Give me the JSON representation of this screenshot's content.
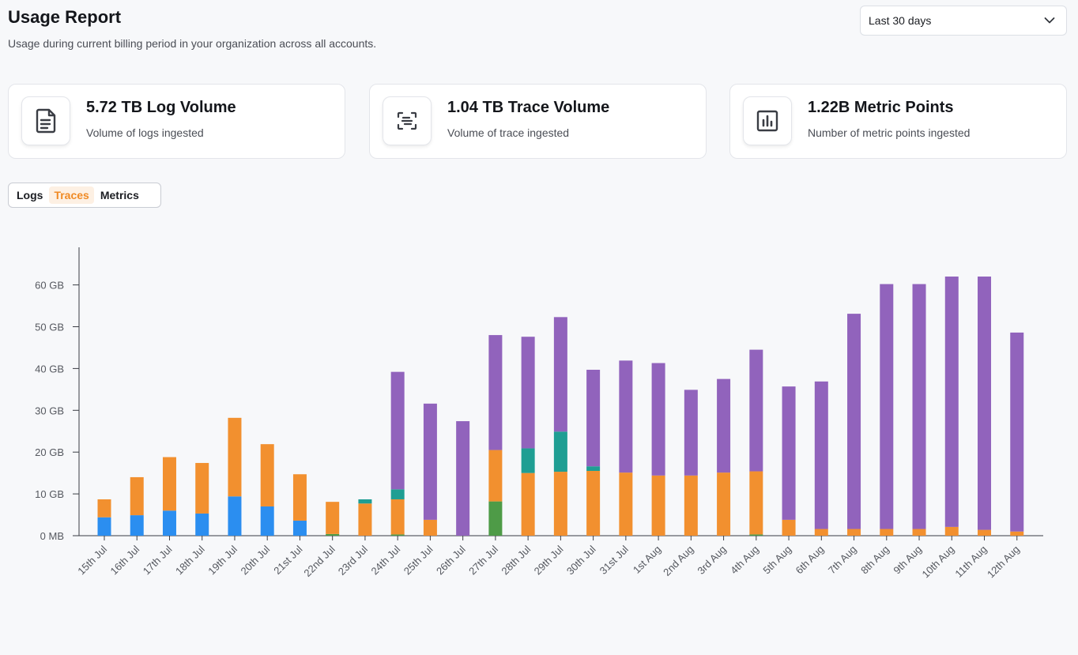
{
  "header": {
    "title": "Usage Report",
    "subtitle": "Usage during current billing period in your organization across all accounts."
  },
  "range_select": {
    "value": "Last 30 days",
    "icon": "chevron-down-icon"
  },
  "cards": [
    {
      "title": "5.72 TB Log Volume",
      "desc": "Volume of logs ingested",
      "icon": "document-icon"
    },
    {
      "title": "1.04 TB Trace Volume",
      "desc": "Volume of trace ingested",
      "icon": "trace-icon"
    },
    {
      "title": "1.22B Metric Points",
      "desc": "Number of metric points ingested",
      "icon": "bar-chart-icon"
    }
  ],
  "tabs": [
    {
      "label": "Logs",
      "active": false
    },
    {
      "label": "Traces",
      "active": true
    },
    {
      "label": "Metrics",
      "active": false
    }
  ],
  "chart_data": {
    "type": "bar",
    "stacked": true,
    "categories": [
      "15th Jul",
      "16th Jul",
      "17th Jul",
      "18th Jul",
      "19th Jul",
      "20th Jul",
      "21st Jul",
      "22nd Jul",
      "23rd Jul",
      "24th Jul",
      "25th Jul",
      "26th Jul",
      "27th Jul",
      "28th Jul",
      "29th Jul",
      "30th Jul",
      "31st Jul",
      "1st Aug",
      "2nd Aug",
      "3rd Aug",
      "4th Aug",
      "5th Aug",
      "6th Aug",
      "7th Aug",
      "8th Aug",
      "9th Aug",
      "10th Aug",
      "11th Aug",
      "12th Aug"
    ],
    "yticks": [
      "0 MB",
      "10 GB",
      "20 GB",
      "30 GB",
      "40 GB",
      "50 GB",
      "60 GB"
    ],
    "ylim": [
      0,
      69
    ],
    "series": [
      {
        "color": "#2b8ef0",
        "values": [
          4.4,
          4.9,
          6.0,
          5.3,
          9.4,
          7.0,
          3.6,
          0,
          0,
          0,
          0,
          0,
          0,
          0,
          0,
          0,
          0,
          0,
          0,
          0,
          0,
          0,
          0,
          0,
          0,
          0,
          0,
          0,
          0
        ]
      },
      {
        "color": "#4e9b47",
        "values": [
          0,
          0,
          0,
          0,
          0,
          0,
          0,
          0.4,
          0,
          0.3,
          0,
          0,
          8.2,
          0,
          0,
          0,
          0,
          0,
          0,
          0,
          0.3,
          0,
          0,
          0,
          0,
          0,
          0,
          0,
          0
        ]
      },
      {
        "color": "#f2902f",
        "values": [
          4.3,
          9.1,
          12.8,
          12.1,
          18.8,
          14.9,
          11.1,
          7.7,
          7.7,
          8.4,
          3.8,
          0,
          12.3,
          15.0,
          15.3,
          15.5,
          15.1,
          14.4,
          14.4,
          15.1,
          15.1,
          3.8,
          1.6,
          1.6,
          1.6,
          1.6,
          2.1,
          1.4,
          1.0
        ]
      },
      {
        "color": "#1f9e93",
        "values": [
          0,
          0,
          0,
          0,
          0,
          0,
          0,
          0,
          1.0,
          2.4,
          0,
          0,
          0,
          5.9,
          9.6,
          1.1,
          0,
          0,
          0,
          0,
          0,
          0,
          0,
          0,
          0,
          0,
          0,
          0,
          0
        ]
      },
      {
        "color": "#9163bc",
        "values": [
          0,
          0,
          0,
          0,
          0,
          0,
          0,
          0,
          0,
          28.1,
          27.8,
          27.4,
          27.5,
          26.7,
          27.4,
          23.1,
          26.8,
          26.9,
          20.5,
          22.4,
          29.1,
          31.9,
          35.3,
          51.5,
          58.6,
          58.6,
          59.9,
          60.6,
          47.6
        ]
      }
    ]
  }
}
